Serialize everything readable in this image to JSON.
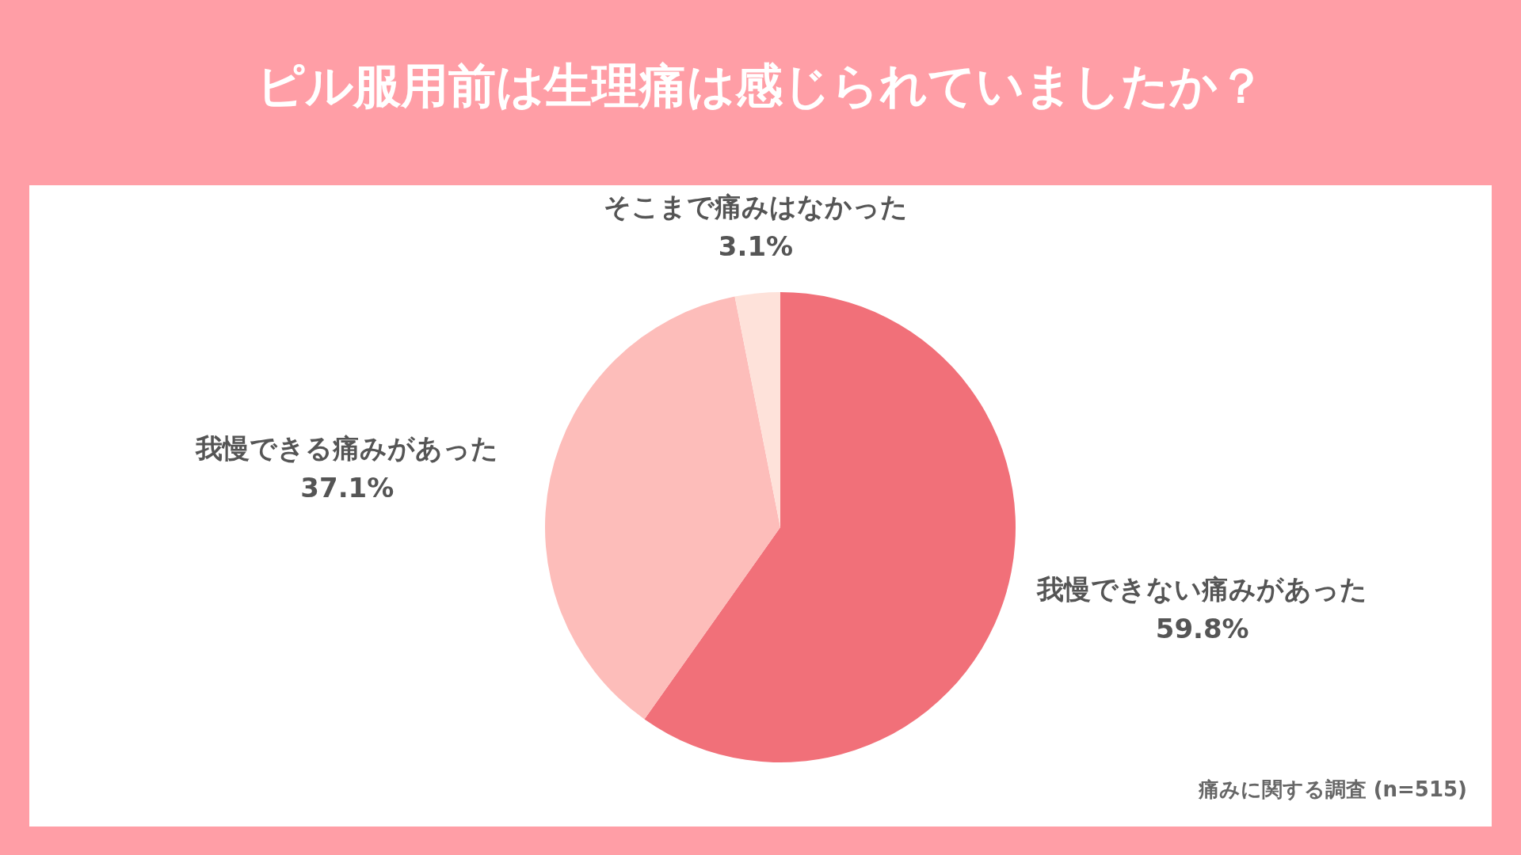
{
  "chart_data": {
    "type": "pie",
    "title": "ピル服用前は生理痛は感じられていましたか？",
    "categories": [
      "我慢できない痛みがあった",
      "我慢できる痛みがあった",
      "そこまで痛みはなかった"
    ],
    "values": [
      59.8,
      37.1,
      3.1
    ],
    "colors": [
      "#f17079",
      "#fdbdba",
      "#fee2da"
    ],
    "value_labels": [
      "59.8%",
      "37.1%",
      "3.1%"
    ],
    "annotations": [
      "痛みに関する調査 (n=515)"
    ]
  }
}
